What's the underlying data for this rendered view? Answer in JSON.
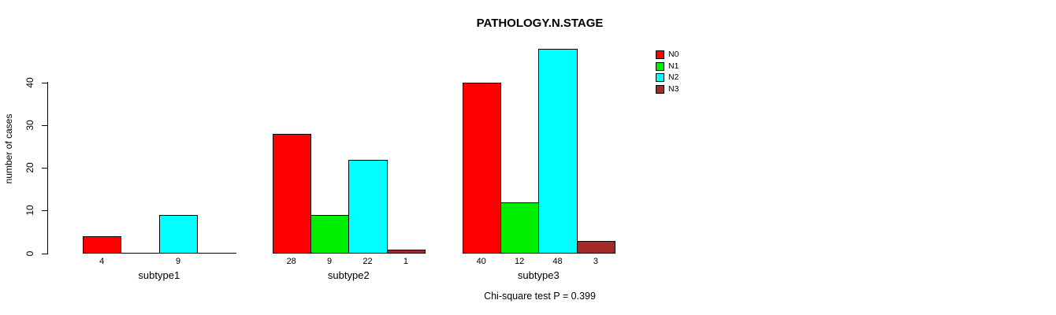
{
  "chart_data": {
    "type": "bar",
    "title": "PATHOLOGY.N.STAGE",
    "ylabel": "number of cases",
    "xlabel": "",
    "categories": [
      "subtype1",
      "subtype2",
      "subtype3"
    ],
    "series": [
      {
        "name": "N0",
        "color": "#ff0000",
        "values": [
          4,
          28,
          40
        ]
      },
      {
        "name": "N1",
        "color": "#00ee00",
        "values": [
          0,
          9,
          12
        ]
      },
      {
        "name": "N2",
        "color": "#00ffff",
        "values": [
          9,
          22,
          48
        ]
      },
      {
        "name": "N3",
        "color": "#a52a2a",
        "values": [
          0,
          1,
          3
        ]
      }
    ],
    "yticks": [
      0,
      10,
      20,
      30,
      40
    ],
    "ylim": [
      0,
      48
    ],
    "grid": false,
    "legend_position": "top-right",
    "bar_value_labels_shown": true,
    "zero_values_unlabeled": true,
    "annotation": "Chi-square test P = 0.399"
  },
  "colors": {
    "background": "#ffffff",
    "axis": "#000000",
    "text": "#000000"
  }
}
